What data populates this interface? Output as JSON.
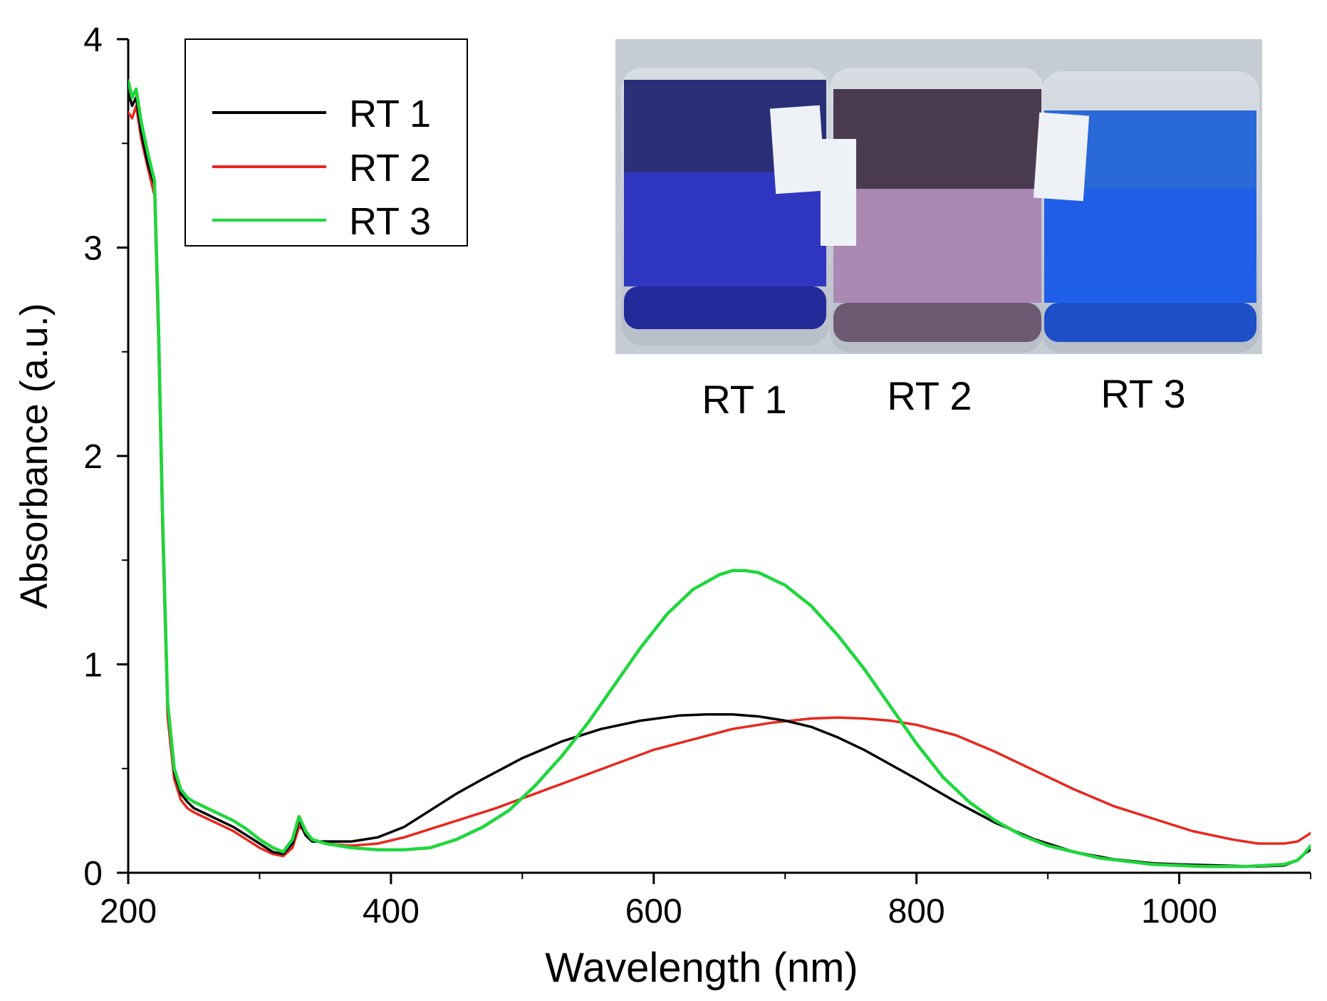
{
  "chart_data": {
    "type": "line",
    "title": "",
    "xlabel": "Wavelength (nm)",
    "ylabel": "Absorbance (a.u.)",
    "xlim": [
      200,
      1100
    ],
    "ylim": [
      0,
      4
    ],
    "x_major_ticks": [
      200,
      400,
      600,
      800,
      1000
    ],
    "x_minor_ticks": [
      300,
      500,
      700,
      900,
      1100
    ],
    "y_major_ticks": [
      0,
      1,
      2,
      3,
      4
    ],
    "y_minor_ticks": [
      0.5,
      1.5,
      2.5,
      3.5
    ],
    "x_tick_labels": [
      "200",
      "400",
      "600",
      "800",
      "1000"
    ],
    "y_tick_labels": [
      "0",
      "1",
      "2",
      "3",
      "4"
    ],
    "grid": false,
    "legend": {
      "position": "top-left",
      "entries": [
        "RT 1",
        "RT 2",
        "RT 3"
      ]
    },
    "series": [
      {
        "name": "RT 1",
        "color": "#000000",
        "x": [
          200,
          203,
          206,
          210,
          215,
          220,
          223,
          226,
          230,
          235,
          240,
          245,
          250,
          260,
          270,
          280,
          290,
          300,
          310,
          318,
          325,
          330,
          335,
          340,
          350,
          370,
          390,
          410,
          430,
          450,
          470,
          500,
          530,
          560,
          590,
          620,
          640,
          660,
          680,
          700,
          720,
          740,
          760,
          780,
          800,
          830,
          860,
          890,
          920,
          950,
          980,
          1000,
          1030,
          1060,
          1080,
          1090,
          1095,
          1100
        ],
        "y": [
          3.75,
          3.68,
          3.72,
          3.55,
          3.4,
          3.3,
          2.6,
          1.7,
          0.8,
          0.48,
          0.38,
          0.34,
          0.31,
          0.28,
          0.25,
          0.22,
          0.18,
          0.14,
          0.1,
          0.09,
          0.14,
          0.25,
          0.18,
          0.15,
          0.15,
          0.15,
          0.17,
          0.22,
          0.3,
          0.38,
          0.45,
          0.55,
          0.63,
          0.69,
          0.73,
          0.755,
          0.76,
          0.76,
          0.75,
          0.73,
          0.7,
          0.65,
          0.59,
          0.52,
          0.45,
          0.34,
          0.24,
          0.16,
          0.1,
          0.065,
          0.045,
          0.04,
          0.035,
          0.03,
          0.035,
          0.06,
          0.09,
          0.11
        ]
      },
      {
        "name": "RT 2",
        "color": "#e8281e",
        "x": [
          200,
          203,
          206,
          210,
          215,
          220,
          223,
          226,
          230,
          235,
          240,
          245,
          250,
          260,
          270,
          280,
          290,
          300,
          310,
          318,
          325,
          330,
          335,
          340,
          350,
          370,
          390,
          410,
          430,
          450,
          480,
          510,
          540,
          570,
          600,
          630,
          660,
          690,
          720,
          740,
          760,
          780,
          800,
          830,
          860,
          890,
          920,
          950,
          980,
          1010,
          1040,
          1060,
          1080,
          1090,
          1095,
          1100
        ],
        "y": [
          3.65,
          3.62,
          3.68,
          3.52,
          3.38,
          3.25,
          2.55,
          1.65,
          0.75,
          0.45,
          0.35,
          0.31,
          0.29,
          0.26,
          0.23,
          0.2,
          0.16,
          0.12,
          0.09,
          0.08,
          0.12,
          0.22,
          0.2,
          0.16,
          0.14,
          0.13,
          0.14,
          0.17,
          0.21,
          0.25,
          0.31,
          0.38,
          0.45,
          0.52,
          0.59,
          0.64,
          0.69,
          0.72,
          0.74,
          0.745,
          0.74,
          0.73,
          0.71,
          0.66,
          0.58,
          0.49,
          0.4,
          0.32,
          0.26,
          0.2,
          0.16,
          0.14,
          0.14,
          0.15,
          0.17,
          0.19
        ]
      },
      {
        "name": "RT 3",
        "color": "#1ed73c",
        "x": [
          200,
          203,
          206,
          210,
          215,
          220,
          223,
          226,
          230,
          235,
          240,
          245,
          250,
          260,
          270,
          280,
          290,
          300,
          310,
          318,
          325,
          330,
          335,
          340,
          350,
          370,
          390,
          410,
          430,
          450,
          470,
          490,
          510,
          530,
          550,
          570,
          590,
          610,
          630,
          650,
          660,
          670,
          680,
          700,
          720,
          740,
          760,
          780,
          800,
          820,
          840,
          860,
          880,
          900,
          940,
          980,
          1020,
          1050,
          1080,
          1090,
          1095,
          1100
        ],
        "y": [
          3.8,
          3.72,
          3.76,
          3.6,
          3.45,
          3.32,
          2.65,
          1.75,
          0.82,
          0.5,
          0.4,
          0.36,
          0.34,
          0.31,
          0.28,
          0.25,
          0.21,
          0.16,
          0.12,
          0.1,
          0.16,
          0.27,
          0.2,
          0.16,
          0.14,
          0.12,
          0.11,
          0.11,
          0.12,
          0.16,
          0.22,
          0.3,
          0.42,
          0.56,
          0.72,
          0.9,
          1.08,
          1.24,
          1.36,
          1.43,
          1.45,
          1.45,
          1.44,
          1.38,
          1.28,
          1.14,
          0.98,
          0.8,
          0.62,
          0.46,
          0.34,
          0.25,
          0.18,
          0.13,
          0.07,
          0.04,
          0.03,
          0.03,
          0.04,
          0.06,
          0.09,
          0.13
        ]
      }
    ],
    "inset": {
      "type": "photo",
      "description_labels": [
        "RT 1",
        "RT 2",
        "RT 3"
      ],
      "vial_colors": [
        "#2a2fb8",
        "#9a7aa0",
        "#1a5ee8"
      ]
    }
  }
}
